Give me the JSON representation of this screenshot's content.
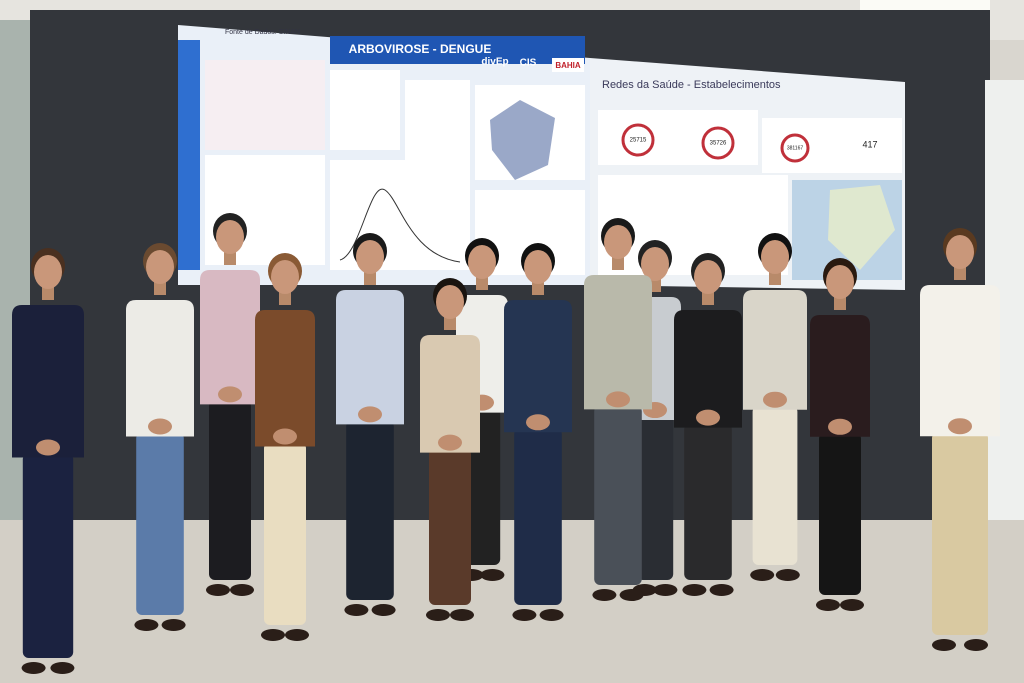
{
  "screen": {
    "left_panel": {
      "source": "Fonte de Dados: SINAN",
      "title": "ARBOVIROSE - DENGUE",
      "logos": [
        "divEp",
        "CIS",
        "BAHIA"
      ]
    },
    "right_panel": {
      "title": "Redes da Saúde - Estabelecimentos",
      "kpis": [
        "25715",
        "35726",
        "381167",
        "417"
      ]
    }
  }
}
